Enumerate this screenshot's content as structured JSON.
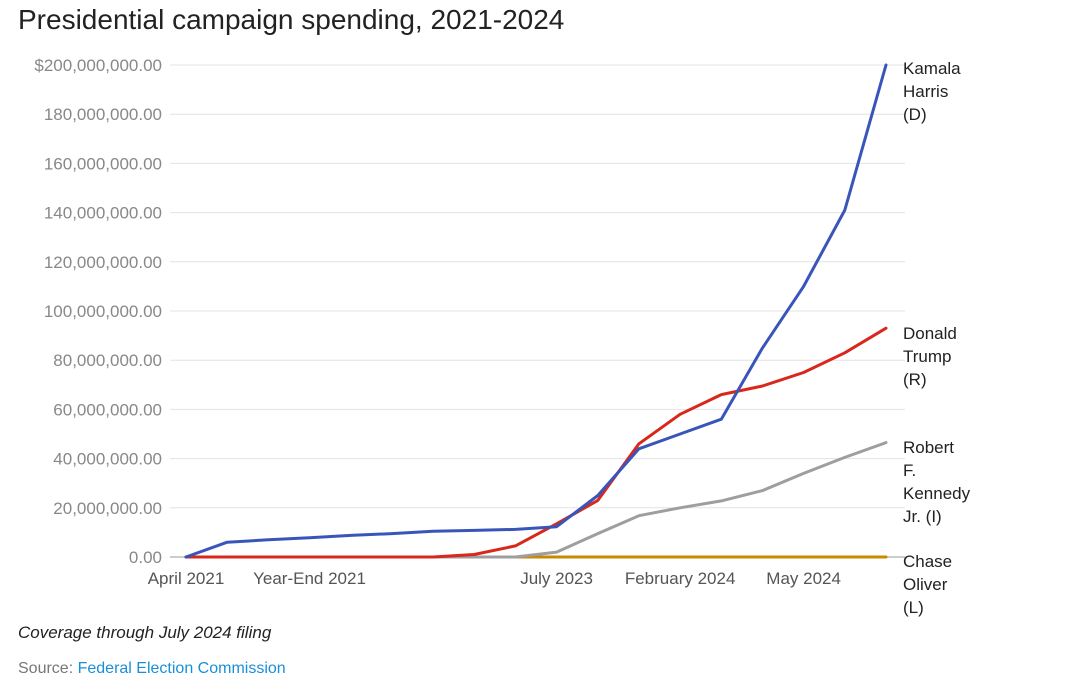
{
  "title": "Presidential campaign spending, 2021-2024",
  "footnote": "Coverage through July 2024 filing",
  "source": {
    "prefix": "Source:",
    "link_text": "Federal Election Commission"
  },
  "chart_data": {
    "type": "line",
    "title": "Presidential campaign spending, 2021-2024",
    "xlabel": "",
    "ylabel": "",
    "ylim": [
      0,
      200000000
    ],
    "y_ticks": [
      "$200,000,000.00",
      "180,000,000.00",
      "160,000,000.00",
      "140,000,000.00",
      "120,000,000.00",
      "100,000,000.00",
      "80,000,000.00",
      "60,000,000.00",
      "40,000,000.00",
      "20,000,000.00",
      "0.00"
    ],
    "y_tick_values": [
      200000000,
      180000000,
      160000000,
      140000000,
      120000000,
      100000000,
      80000000,
      60000000,
      40000000,
      20000000,
      0
    ],
    "x_tick_labels": [
      {
        "label": "April 2021",
        "index": 0
      },
      {
        "label": "Year-End 2021",
        "index": 3
      },
      {
        "label": "July 2023",
        "index": 9
      },
      {
        "label": "February 2024",
        "index": 12
      },
      {
        "label": "May 2024",
        "index": 15
      }
    ],
    "x_count": 18,
    "grid": true,
    "series": [
      {
        "name": "Kamala Harris (D)",
        "label_lines": [
          "Kamala",
          "Harris",
          "(D)"
        ],
        "color": "#3a55b9",
        "values": [
          0,
          6000000,
          7000000,
          7800000,
          8800000,
          9500000,
          10500000,
          10800000,
          11200000,
          12300000,
          25000000,
          44000000,
          50000000,
          56000000,
          85000000,
          110000000,
          141000000,
          200000000
        ]
      },
      {
        "name": "Donald Trump (R)",
        "label_lines": [
          "Donald",
          "Trump",
          "(R)"
        ],
        "color": "#d9271c",
        "values": [
          0,
          0,
          0,
          0,
          0,
          0,
          0,
          1000000,
          4500000,
          13500000,
          23000000,
          46000000,
          58000000,
          66000000,
          69500000,
          75000000,
          83000000,
          93000000
        ]
      },
      {
        "name": "Robert F. Kennedy Jr. (I)",
        "label_lines": [
          "Robert",
          "F.",
          "Kennedy",
          "Jr. (I)"
        ],
        "color": "#9e9e9e",
        "values": [
          0,
          0,
          0,
          0,
          0,
          0,
          0,
          0,
          0,
          2000000,
          9500000,
          16800000,
          20000000,
          22800000,
          27000000,
          34000000,
          40500000,
          46500000
        ]
      },
      {
        "name": "Chase Oliver (L)",
        "label_lines": [
          "Chase",
          "Oliver",
          "(L)"
        ],
        "color": "#c98a00",
        "values": [
          0,
          0,
          0,
          0,
          0,
          0,
          0,
          0,
          0,
          0,
          0,
          0,
          0,
          0,
          0,
          0,
          0,
          0
        ]
      }
    ]
  }
}
